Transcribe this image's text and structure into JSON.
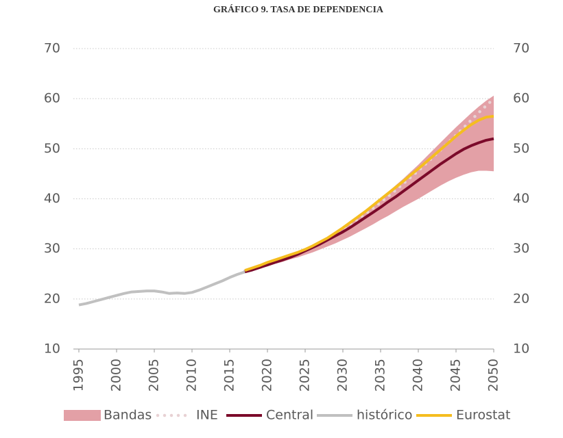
{
  "chart_data": {
    "type": "line",
    "title": "GRÁFICO 9. TASA DE DEPENDENCIA",
    "x": [
      1995,
      1996,
      1997,
      1998,
      1999,
      2000,
      2001,
      2002,
      2003,
      2004,
      2005,
      2006,
      2007,
      2008,
      2009,
      2010,
      2011,
      2012,
      2013,
      2014,
      2015,
      2016,
      2017,
      2018,
      2019,
      2020,
      2021,
      2022,
      2023,
      2024,
      2025,
      2026,
      2027,
      2028,
      2029,
      2030,
      2031,
      2032,
      2033,
      2034,
      2035,
      2036,
      2037,
      2038,
      2039,
      2040,
      2041,
      2042,
      2043,
      2044,
      2045,
      2046,
      2047,
      2048,
      2049,
      2050
    ],
    "xlim": [
      1995,
      2050
    ],
    "xticks": [
      1995,
      2000,
      2005,
      2010,
      2015,
      2020,
      2025,
      2030,
      2035,
      2040,
      2045,
      2050
    ],
    "ylim": [
      10,
      70
    ],
    "yticks": [
      10,
      20,
      30,
      40,
      50,
      60,
      70
    ],
    "y2lim": [
      10,
      70
    ],
    "y2ticks": [
      10,
      20,
      30,
      40,
      50,
      60,
      70
    ],
    "grid": true,
    "legend": "bottom",
    "series": [
      {
        "name": "Bandas",
        "color": "#e3a0a6",
        "style": "band",
        "values": [
          null,
          null,
          null,
          null,
          null,
          null,
          null,
          null,
          null,
          null,
          null,
          null,
          null,
          null,
          null,
          null,
          null,
          null,
          null,
          null,
          null,
          null,
          25.6,
          26.1,
          26.7,
          27.3,
          27.9,
          28.4,
          28.9,
          29.4,
          30.0,
          30.7,
          31.5,
          32.4,
          33.3,
          34.3,
          35.4,
          36.5,
          37.7,
          38.9,
          40.1,
          41.4,
          42.7,
          44.0,
          45.4,
          46.8,
          48.3,
          49.8,
          51.3,
          52.8,
          54.3,
          55.7,
          57.1,
          58.4,
          59.6,
          60.6
        ],
        "lower": [
          null,
          null,
          null,
          null,
          null,
          null,
          null,
          null,
          null,
          null,
          null,
          null,
          null,
          null,
          null,
          null,
          null,
          null,
          null,
          null,
          null,
          null,
          25.4,
          25.7,
          26.1,
          26.5,
          27.0,
          27.4,
          27.9,
          28.3,
          28.8,
          29.3,
          29.9,
          30.5,
          31.1,
          31.8,
          32.5,
          33.3,
          34.1,
          34.9,
          35.8,
          36.6,
          37.5,
          38.4,
          39.2,
          40.0,
          40.9,
          41.8,
          42.7,
          43.5,
          44.2,
          44.8,
          45.3,
          45.6,
          45.6,
          45.5
        ]
      },
      {
        "name": "INE",
        "color": "#e8d2d4",
        "style": "dotted",
        "values": [
          null,
          null,
          null,
          null,
          null,
          null,
          null,
          null,
          null,
          null,
          null,
          null,
          null,
          null,
          null,
          null,
          null,
          null,
          null,
          null,
          null,
          null,
          25.6,
          26.1,
          26.6,
          27.1,
          27.6,
          28.1,
          28.6,
          29.2,
          29.8,
          30.5,
          31.2,
          32.0,
          32.9,
          33.8,
          34.8,
          35.9,
          37.0,
          38.1,
          39.3,
          40.5,
          41.7,
          43.0,
          44.3,
          45.6,
          47.0,
          48.4,
          49.8,
          51.3,
          52.7,
          54.2,
          55.7,
          57.2,
          58.6,
          60.0
        ]
      },
      {
        "name": "Central",
        "color": "#7b0a2a",
        "style": "solid",
        "values": [
          null,
          null,
          null,
          null,
          null,
          null,
          null,
          null,
          null,
          null,
          null,
          null,
          null,
          null,
          null,
          null,
          null,
          null,
          null,
          null,
          null,
          null,
          25.4,
          25.8,
          26.3,
          26.8,
          27.3,
          27.8,
          28.3,
          28.9,
          29.6,
          30.3,
          31.0,
          31.8,
          32.6,
          33.4,
          34.3,
          35.3,
          36.3,
          37.3,
          38.3,
          39.4,
          40.4,
          41.5,
          42.6,
          43.7,
          44.8,
          45.9,
          47.0,
          48.0,
          49.0,
          49.9,
          50.6,
          51.2,
          51.7,
          52.0
        ]
      },
      {
        "name": "histórico",
        "color": "#c0c0c0",
        "style": "solid",
        "values": [
          18.8,
          19.1,
          19.5,
          19.9,
          20.3,
          20.7,
          21.1,
          21.4,
          21.5,
          21.6,
          21.6,
          21.4,
          21.1,
          21.2,
          21.1,
          21.3,
          21.8,
          22.4,
          23.0,
          23.6,
          24.3,
          24.9,
          25.4,
          null,
          null,
          null,
          null,
          null,
          null,
          null,
          null,
          null,
          null,
          null,
          null,
          null,
          null,
          null,
          null,
          null,
          null,
          null,
          null,
          null,
          null,
          null,
          null,
          null,
          null,
          null,
          null,
          null,
          null,
          null,
          null,
          null
        ]
      },
      {
        "name": "Eurostat",
        "color": "#f5bd1f",
        "style": "solid",
        "values": [
          null,
          null,
          null,
          null,
          null,
          null,
          null,
          null,
          null,
          null,
          null,
          null,
          null,
          null,
          null,
          null,
          null,
          null,
          null,
          null,
          null,
          null,
          25.7,
          26.2,
          26.7,
          27.3,
          27.8,
          28.3,
          28.8,
          29.3,
          29.9,
          30.6,
          31.4,
          32.2,
          33.2,
          34.2,
          35.3,
          36.4,
          37.5,
          38.7,
          39.9,
          41.1,
          42.3,
          43.5,
          44.8,
          46.0,
          47.3,
          48.6,
          49.9,
          51.2,
          52.5,
          53.7,
          54.8,
          55.7,
          56.3,
          56.5
        ]
      }
    ]
  }
}
